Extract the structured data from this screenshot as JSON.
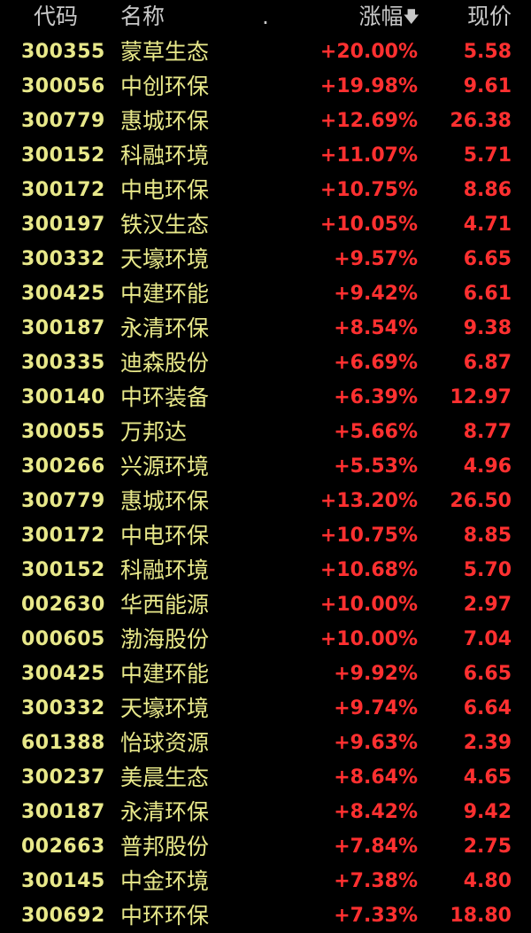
{
  "header": {
    "code": "代码",
    "name": "名称",
    "dot": ".",
    "change": "涨幅",
    "sort_icon": "arrow-down",
    "price": "现价"
  },
  "colors": {
    "background": "#000000",
    "code": "#e8e88a",
    "up": "#ff3030",
    "header": "#c8c8c8"
  },
  "rows": [
    {
      "code": "300355",
      "name": "蒙草生态",
      "change": "+20.00%",
      "price": "5.58"
    },
    {
      "code": "300056",
      "name": "中创环保",
      "change": "+19.98%",
      "price": "9.61"
    },
    {
      "code": "300779",
      "name": "惠城环保",
      "change": "+12.69%",
      "price": "26.38"
    },
    {
      "code": "300152",
      "name": "科融环境",
      "change": "+11.07%",
      "price": "5.71"
    },
    {
      "code": "300172",
      "name": "中电环保",
      "change": "+10.75%",
      "price": "8.86"
    },
    {
      "code": "300197",
      "name": "铁汉生态",
      "change": "+10.05%",
      "price": "4.71"
    },
    {
      "code": "300332",
      "name": "天壕环境",
      "change": "+9.57%",
      "price": "6.65"
    },
    {
      "code": "300425",
      "name": "中建环能",
      "change": "+9.42%",
      "price": "6.61"
    },
    {
      "code": "300187",
      "name": "永清环保",
      "change": "+8.54%",
      "price": "9.38"
    },
    {
      "code": "300335",
      "name": "迪森股份",
      "change": "+6.69%",
      "price": "6.87"
    },
    {
      "code": "300140",
      "name": "中环装备",
      "change": "+6.39%",
      "price": "12.97"
    },
    {
      "code": "300055",
      "name": "万邦达",
      "change": "+5.66%",
      "price": "8.77"
    },
    {
      "code": "300266",
      "name": "兴源环境",
      "change": "+5.53%",
      "price": "4.96"
    },
    {
      "code": "300779",
      "name": "惠城环保",
      "change": "+13.20%",
      "price": "26.50"
    },
    {
      "code": "300172",
      "name": "中电环保",
      "change": "+10.75%",
      "price": "8.85"
    },
    {
      "code": "300152",
      "name": "科融环境",
      "change": "+10.68%",
      "price": "5.70"
    },
    {
      "code": "002630",
      "name": "华西能源",
      "change": "+10.00%",
      "price": "2.97"
    },
    {
      "code": "000605",
      "name": "渤海股份",
      "change": "+10.00%",
      "price": "7.04"
    },
    {
      "code": "300425",
      "name": "中建环能",
      "change": "+9.92%",
      "price": "6.65"
    },
    {
      "code": "300332",
      "name": "天壕环境",
      "change": "+9.74%",
      "price": "6.64"
    },
    {
      "code": "601388",
      "name": "怡球资源",
      "change": "+9.63%",
      "price": "2.39"
    },
    {
      "code": "300237",
      "name": "美晨生态",
      "change": "+8.64%",
      "price": "4.65"
    },
    {
      "code": "300187",
      "name": "永清环保",
      "change": "+8.42%",
      "price": "9.42"
    },
    {
      "code": "002663",
      "name": "普邦股份",
      "change": "+7.84%",
      "price": "2.75"
    },
    {
      "code": "300145",
      "name": "中金环境",
      "change": "+7.38%",
      "price": "4.80"
    },
    {
      "code": "300692",
      "name": "中环环保",
      "change": "+7.33%",
      "price": "18.80"
    }
  ]
}
